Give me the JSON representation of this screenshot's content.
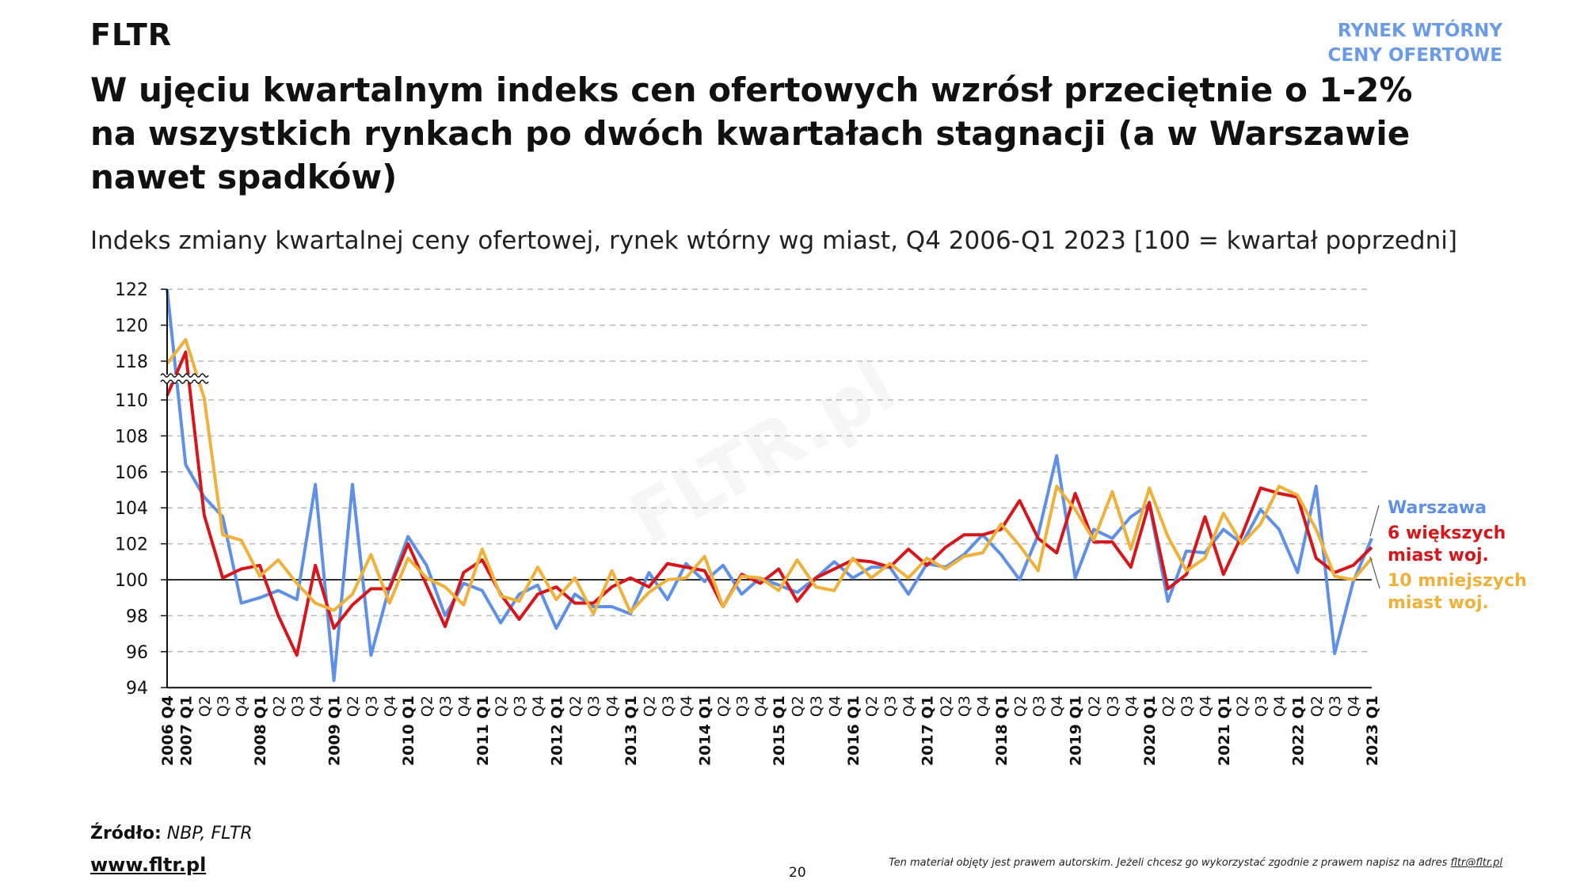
{
  "header": {
    "logo": "FLTR",
    "section_line1": "RYNEK WTÓRNY",
    "section_line2": "CENY OFERTOWE",
    "title": "W ujęciu kwartalnym indeks cen ofertowych wzrósł przeciętnie o 1-2% na wszystkich rynkach po dwóch kwartałach stagnacji (a w Warszawie nawet spadków)",
    "subtitle": "Indeks zmiany kwartalnej ceny ofertowej, rynek wtórny wg miast, Q4 2006-Q1 2023 [100 = kwartał poprzedni]"
  },
  "watermark": "FLTR.pl",
  "footer": {
    "source_label": "Źródło:",
    "source_value": "NBP, FLTR",
    "website": "www.fltr.pl",
    "page_number": "20",
    "copyright": "Ten materiał objęty jest prawem autorskim. Jeżeli chcesz go wykorzystać zgodnie z prawem napisz na adres",
    "copyright_email": "fltr@fltr.pl"
  },
  "chart_data": {
    "type": "line",
    "title": "Indeks zmiany kwartalnej ceny ofertowej, rynek wtórny wg miast, Q4 2006-Q1 2023 [100 = kwartał poprzedni]",
    "xlabel": "",
    "ylabel": "",
    "ylim": [
      94,
      122
    ],
    "y_ticks": [
      94,
      96,
      98,
      100,
      102,
      104,
      106,
      108,
      110,
      118,
      120,
      122
    ],
    "y_axis_break": [
      110,
      118
    ],
    "reference_line": 100,
    "grid": "horizontal dashed",
    "legend_placement": "right",
    "categories": [
      "2006 Q4",
      "2007 Q1",
      "Q2",
      "Q3",
      "Q4",
      "2008 Q1",
      "Q2",
      "Q3",
      "Q4",
      "2009 Q1",
      "Q2",
      "Q3",
      "Q4",
      "2010 Q1",
      "Q2",
      "Q3",
      "Q4",
      "2011 Q1",
      "Q2",
      "Q3",
      "Q4",
      "2012 Q1",
      "Q2",
      "Q3",
      "Q4",
      "2013 Q1",
      "Q2",
      "Q3",
      "Q4",
      "2014 Q1",
      "Q2",
      "Q3",
      "Q4",
      "2015 Q1",
      "Q2",
      "Q3",
      "Q4",
      "2016 Q1",
      "Q2",
      "Q3",
      "Q4",
      "2017 Q1",
      "Q2",
      "Q3",
      "Q4",
      "2018 Q1",
      "Q2",
      "Q3",
      "Q4",
      "2019 Q1",
      "Q2",
      "Q3",
      "Q4",
      "2020 Q1",
      "Q2",
      "Q3",
      "Q4",
      "2021 Q1",
      "Q2",
      "Q3",
      "Q4",
      "2022 Q1",
      "Q2",
      "Q3",
      "Q4",
      "2023 Q1"
    ],
    "series": [
      {
        "name": "Warszawa",
        "color": "#5f90e8",
        "values": [
          122.0,
          106.4,
          104.6,
          103.5,
          98.7,
          99.0,
          99.4,
          98.9,
          105.3,
          94.4,
          105.3,
          95.8,
          99.6,
          102.4,
          100.8,
          98.0,
          99.8,
          99.4,
          97.6,
          99.2,
          99.7,
          97.3,
          99.2,
          98.5,
          98.5,
          98.1,
          100.4,
          98.9,
          100.9,
          99.9,
          100.8,
          99.2,
          100.1,
          99.7,
          99.3,
          100.1,
          101.0,
          100.1,
          100.7,
          100.7,
          99.2,
          100.9,
          100.7,
          101.4,
          102.5,
          101.4,
          100.0,
          102.5,
          106.9,
          100.1,
          102.8,
          102.3,
          103.5,
          104.2,
          98.8,
          101.6,
          101.5,
          102.8,
          102.0,
          103.9,
          102.8,
          100.4,
          105.2,
          95.9,
          99.9,
          102.3
        ]
      },
      {
        "name": "6 większych miast woj.",
        "name_line1": "6 większych",
        "name_line2": "miast woj.",
        "color": "#d7161b",
        "values": [
          110.9,
          118.5,
          103.6,
          100.1,
          100.6,
          100.8,
          98.0,
          95.8,
          100.8,
          97.3,
          98.6,
          99.5,
          99.5,
          102.0,
          99.7,
          97.4,
          100.4,
          101.1,
          99.2,
          97.8,
          99.2,
          99.6,
          98.7,
          98.7,
          99.6,
          100.1,
          99.6,
          100.9,
          100.7,
          100.5,
          98.5,
          100.3,
          99.8,
          100.6,
          98.8,
          100.1,
          100.6,
          101.1,
          101.0,
          100.7,
          101.7,
          100.8,
          101.8,
          102.5,
          102.5,
          102.8,
          104.4,
          102.3,
          101.5,
          104.8,
          102.1,
          102.1,
          100.7,
          104.3,
          99.5,
          100.3,
          103.5,
          100.3,
          102.5,
          105.1,
          104.8,
          104.6,
          101.2,
          100.4,
          100.8,
          101.8
        ]
      },
      {
        "name": "10 mniejszych miast woj.",
        "name_line1": "10 mniejszych",
        "name_line2": "miast woj.",
        "color": "#f0b13a",
        "values": [
          117.5,
          119.2,
          110.4,
          102.5,
          102.2,
          100.2,
          101.1,
          99.8,
          98.7,
          98.3,
          99.2,
          101.4,
          98.7,
          101.2,
          100.1,
          99.6,
          98.6,
          101.7,
          99.1,
          98.8,
          100.7,
          98.9,
          100.1,
          98.1,
          100.5,
          98.2,
          99.3,
          100.0,
          100.1,
          101.3,
          98.5,
          100.2,
          100.1,
          99.4,
          101.1,
          99.6,
          99.4,
          101.2,
          100.1,
          100.9,
          100.1,
          101.2,
          100.6,
          101.3,
          101.5,
          103.1,
          101.9,
          100.5,
          105.2,
          103.9,
          102.2,
          104.9,
          101.7,
          105.1,
          102.4,
          100.5,
          101.2,
          103.7,
          102.0,
          103.1,
          105.2,
          104.7,
          102.8,
          100.2,
          100.0,
          101.2
        ]
      }
    ]
  }
}
